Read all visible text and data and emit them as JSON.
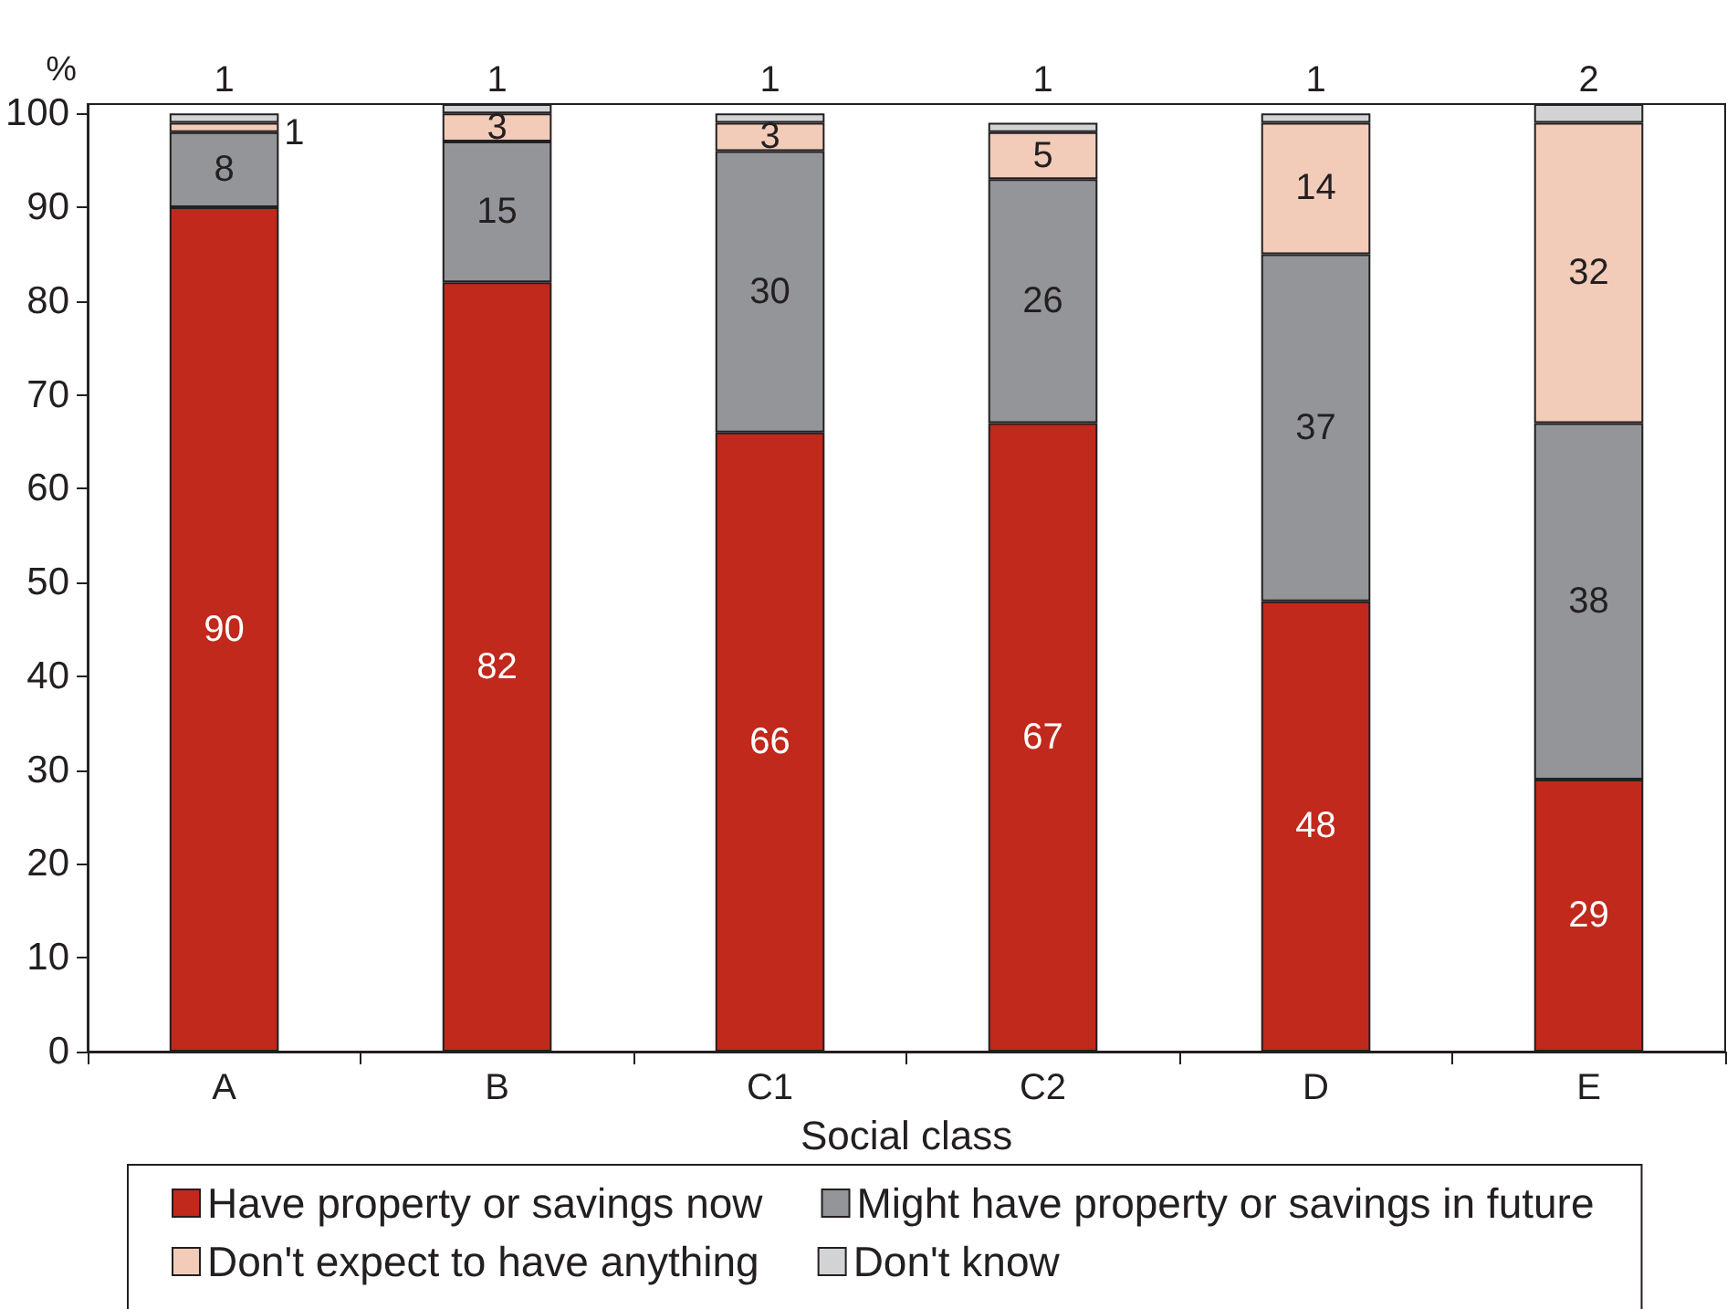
{
  "chart_data": {
    "type": "bar",
    "stacked": true,
    "xlabel": "Social class",
    "ylabel": "%",
    "categories": [
      "A",
      "B",
      "C1",
      "C2",
      "D",
      "E"
    ],
    "series": [
      {
        "name": "Have property or savings now",
        "color": "#c0291b",
        "values": [
          90,
          82,
          66,
          67,
          48,
          29
        ]
      },
      {
        "name": "Might have property or savings in future",
        "color": "#939598",
        "values": [
          8,
          15,
          30,
          26,
          37,
          38
        ]
      },
      {
        "name": "Don't expect to have anything",
        "color": "#f2cbb9",
        "values": [
          1,
          3,
          3,
          5,
          14,
          32
        ]
      },
      {
        "name": "Don't know",
        "color": "#d1d3d4",
        "values": [
          1,
          1,
          1,
          1,
          1,
          2
        ]
      }
    ],
    "ylim": [
      0,
      101
    ],
    "yticks": [
      0,
      10,
      20,
      30,
      40,
      50,
      60,
      70,
      80,
      90,
      100
    ],
    "legend": "bottom",
    "data_labels": true
  }
}
